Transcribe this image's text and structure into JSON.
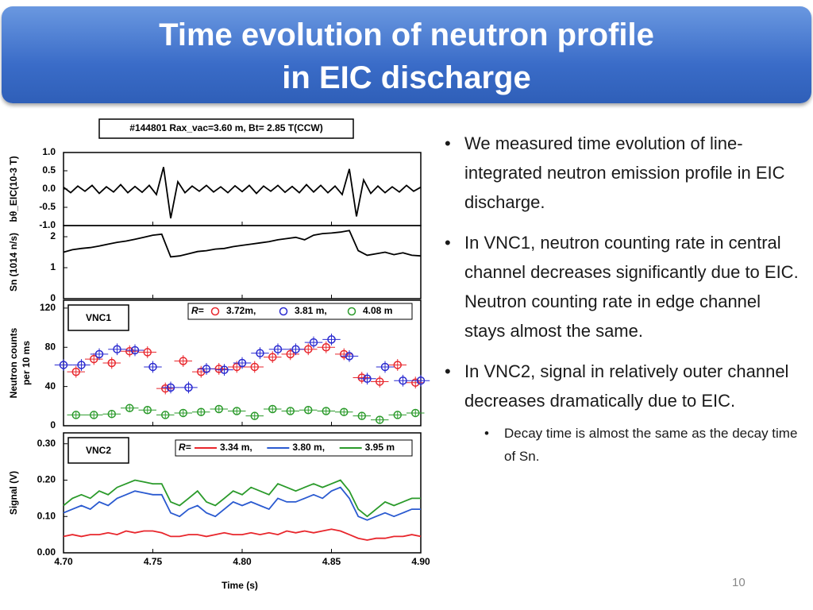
{
  "slide": {
    "title": [
      "Time evolution of neutron profile",
      "in EIC discharge"
    ],
    "bullets": [
      "We measured time evolution of line-integrated neutron emission profile in EIC discharge.",
      "In VNC1, neutron counting rate in central channel decreases significantly due to EIC. Neutron counting rate in edge channel stays almost the same.",
      "In VNC2, signal in relatively outer channel decreases dramatically due to EIC."
    ],
    "sub_bullets": [
      "Decay time is almost the same as the decay time of Sn."
    ],
    "page_number": "10"
  },
  "chart_data": [
    {
      "type": "line",
      "title": "#144801 Rax_vac=3.60 m, Bt= 2.85 T(CCW)",
      "ylabel": [
        "bθ_EIC(10-3 T)"
      ],
      "xlim": [
        4.7,
        4.9
      ],
      "ylim": [
        -1,
        1
      ],
      "yticks": [
        {
          "value": 1,
          "label": "1.0"
        },
        {
          "value": 0.5,
          "label": "0.5"
        },
        {
          "value": 0,
          "label": "0.0"
        },
        {
          "value": -0.5,
          "label": "-0.5"
        },
        {
          "value": -1,
          "label": "-1.0"
        }
      ],
      "x": [
        4.7,
        4.704,
        4.708,
        4.712,
        4.716,
        4.72,
        4.724,
        4.728,
        4.732,
        4.736,
        4.74,
        4.744,
        4.748,
        4.752,
        4.756,
        4.76,
        4.764,
        4.768,
        4.772,
        4.776,
        4.78,
        4.784,
        4.788,
        4.792,
        4.796,
        4.8,
        4.804,
        4.808,
        4.812,
        4.816,
        4.82,
        4.824,
        4.828,
        4.832,
        4.836,
        4.84,
        4.844,
        4.848,
        4.852,
        4.856,
        4.86,
        4.864,
        4.868,
        4.872,
        4.876,
        4.88,
        4.884,
        4.888,
        4.892,
        4.896,
        4.9
      ],
      "series": [
        {
          "color": "#000000",
          "values": [
            0.05,
            -0.1,
            0.08,
            -0.06,
            0.1,
            -0.12,
            0.06,
            -0.08,
            0.12,
            -0.1,
            0.07,
            -0.09,
            0.1,
            -0.15,
            0.6,
            -0.8,
            0.2,
            -0.1,
            0.08,
            -0.06,
            0.1,
            -0.08,
            0.06,
            -0.1,
            0.09,
            -0.07,
            0.1,
            -0.12,
            0.08,
            -0.06,
            0.1,
            -0.09,
            0.07,
            -0.1,
            0.12,
            -0.08,
            0.1,
            -0.1,
            0.08,
            -0.15,
            0.55,
            -0.75,
            0.25,
            -0.12,
            0.08,
            -0.1,
            0.06,
            -0.08,
            0.1,
            -0.06,
            0.05
          ]
        }
      ]
    },
    {
      "type": "line",
      "ylabel": [
        "Sn (1014 n/s)"
      ],
      "xlim": [
        4.7,
        4.9
      ],
      "ylim": [
        0,
        2.36
      ],
      "yticks": [
        0,
        1,
        2
      ],
      "x": [
        4.7,
        4.705,
        4.71,
        4.715,
        4.72,
        4.725,
        4.73,
        4.735,
        4.74,
        4.745,
        4.75,
        4.755,
        4.76,
        4.765,
        4.77,
        4.775,
        4.78,
        4.785,
        4.79,
        4.795,
        4.8,
        4.805,
        4.81,
        4.815,
        4.82,
        4.825,
        4.83,
        4.835,
        4.84,
        4.845,
        4.85,
        4.855,
        4.86,
        4.865,
        4.87,
        4.875,
        4.88,
        4.885,
        4.89,
        4.895,
        4.9
      ],
      "series": [
        {
          "color": "#000000",
          "values": [
            1.5,
            1.58,
            1.62,
            1.65,
            1.7,
            1.76,
            1.82,
            1.86,
            1.92,
            1.98,
            2.05,
            2.08,
            1.35,
            1.38,
            1.45,
            1.52,
            1.55,
            1.6,
            1.62,
            1.68,
            1.72,
            1.76,
            1.8,
            1.84,
            1.9,
            1.94,
            1.98,
            1.9,
            2.05,
            2.1,
            2.12,
            2.15,
            2.2,
            1.55,
            1.4,
            1.45,
            1.5,
            1.42,
            1.48,
            1.4,
            1.38
          ]
        }
      ]
    },
    {
      "type": "scatter",
      "label": "VNC1",
      "ylabel": [
        "Neutron counts",
        "per 10 ms"
      ],
      "legend_title": "R=",
      "xlim": [
        4.7,
        4.9
      ],
      "ylim": [
        0,
        128
      ],
      "yticks": [
        0,
        40,
        80,
        120
      ],
      "series": [
        {
          "name": "3.72m,",
          "color": "#e8262c",
          "xerr": 0.005,
          "yerr": 6,
          "x": [
            4.707,
            4.717,
            4.727,
            4.737,
            4.747,
            4.757,
            4.767,
            4.777,
            4.787,
            4.797,
            4.807,
            4.817,
            4.827,
            4.837,
            4.847,
            4.857,
            4.867,
            4.877,
            4.887,
            4.897
          ],
          "values": [
            55,
            68,
            64,
            76,
            75,
            38,
            66,
            55,
            58,
            60,
            60,
            70,
            73,
            78,
            80,
            73,
            49,
            45,
            62,
            44
          ]
        },
        {
          "name": "3.81 m,",
          "color": "#2a2ad0",
          "xerr": 0.005,
          "yerr": 6,
          "x": [
            4.7,
            4.71,
            4.72,
            4.73,
            4.74,
            4.75,
            4.76,
            4.77,
            4.78,
            4.79,
            4.8,
            4.81,
            4.82,
            4.83,
            4.84,
            4.85,
            4.86,
            4.87,
            4.88,
            4.89,
            4.9
          ],
          "values": [
            62,
            62,
            73,
            78,
            77,
            60,
            39,
            39,
            58,
            57,
            64,
            74,
            78,
            78,
            85,
            88,
            71,
            48,
            60,
            46,
            46
          ]
        },
        {
          "name": "4.08 m",
          "color": "#2a9a2a",
          "xerr": 0.005,
          "yerr": 3,
          "x": [
            4.707,
            4.717,
            4.727,
            4.737,
            4.747,
            4.757,
            4.767,
            4.777,
            4.787,
            4.797,
            4.807,
            4.817,
            4.827,
            4.837,
            4.847,
            4.857,
            4.867,
            4.877,
            4.887,
            4.897
          ],
          "values": [
            11,
            11,
            12,
            18,
            16,
            11,
            13,
            14,
            17,
            15,
            10,
            17,
            15,
            16,
            15,
            14,
            10,
            6,
            11,
            13
          ]
        }
      ]
    },
    {
      "type": "line",
      "label": "VNC2",
      "ylabel": [
        "Signal (V)"
      ],
      "xlabel": "Time (s)",
      "legend_title": "R=",
      "xlim": [
        4.7,
        4.9
      ],
      "ylim": [
        0,
        0.33
      ],
      "xticks": [
        {
          "value": 4.7,
          "label": "4.70"
        },
        {
          "value": 4.75,
          "label": "4.75"
        },
        {
          "value": 4.8,
          "label": "4.80"
        },
        {
          "value": 4.85,
          "label": "4.85"
        },
        {
          "value": 4.9,
          "label": "4.90"
        }
      ],
      "yticks": [
        {
          "value": 0,
          "label": "0.00"
        },
        {
          "value": 0.1,
          "label": "0.10"
        },
        {
          "value": 0.2,
          "label": "0.20"
        },
        {
          "value": 0.3,
          "label": "0.30"
        }
      ],
      "x": [
        4.7,
        4.705,
        4.71,
        4.715,
        4.72,
        4.725,
        4.73,
        4.735,
        4.74,
        4.745,
        4.75,
        4.755,
        4.76,
        4.765,
        4.77,
        4.775,
        4.78,
        4.785,
        4.79,
        4.795,
        4.8,
        4.805,
        4.81,
        4.815,
        4.82,
        4.825,
        4.83,
        4.835,
        4.84,
        4.845,
        4.85,
        4.855,
        4.86,
        4.865,
        4.87,
        4.875,
        4.88,
        4.885,
        4.89,
        4.895,
        4.9
      ],
      "series": [
        {
          "name": "3.34 m,",
          "color": "#e8262c",
          "values": [
            0.045,
            0.05,
            0.045,
            0.05,
            0.05,
            0.055,
            0.05,
            0.06,
            0.055,
            0.06,
            0.06,
            0.055,
            0.045,
            0.045,
            0.05,
            0.05,
            0.045,
            0.05,
            0.055,
            0.05,
            0.05,
            0.055,
            0.05,
            0.055,
            0.05,
            0.06,
            0.055,
            0.06,
            0.055,
            0.06,
            0.065,
            0.06,
            0.05,
            0.04,
            0.035,
            0.04,
            0.04,
            0.045,
            0.045,
            0.05,
            0.045
          ]
        },
        {
          "name": "3.80 m,",
          "color": "#2a5ad0",
          "values": [
            0.11,
            0.12,
            0.13,
            0.12,
            0.14,
            0.13,
            0.15,
            0.16,
            0.17,
            0.165,
            0.16,
            0.16,
            0.11,
            0.1,
            0.12,
            0.13,
            0.11,
            0.1,
            0.12,
            0.14,
            0.13,
            0.14,
            0.13,
            0.12,
            0.15,
            0.14,
            0.14,
            0.15,
            0.16,
            0.15,
            0.17,
            0.18,
            0.15,
            0.1,
            0.09,
            0.1,
            0.11,
            0.1,
            0.11,
            0.12,
            0.12
          ]
        },
        {
          "name": "3.95 m",
          "color": "#2a9a2a",
          "values": [
            0.13,
            0.15,
            0.16,
            0.15,
            0.17,
            0.16,
            0.18,
            0.19,
            0.2,
            0.195,
            0.19,
            0.19,
            0.14,
            0.13,
            0.15,
            0.17,
            0.14,
            0.13,
            0.15,
            0.17,
            0.16,
            0.18,
            0.17,
            0.16,
            0.19,
            0.18,
            0.17,
            0.18,
            0.19,
            0.18,
            0.19,
            0.2,
            0.17,
            0.12,
            0.1,
            0.12,
            0.14,
            0.13,
            0.14,
            0.15,
            0.15
          ]
        }
      ]
    }
  ]
}
